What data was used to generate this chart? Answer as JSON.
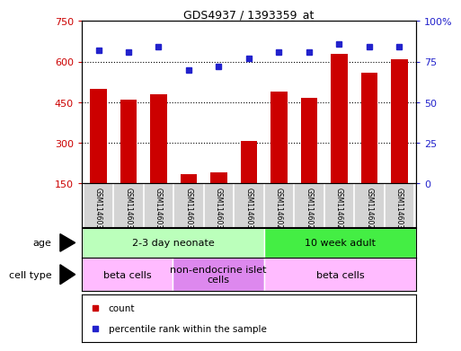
{
  "title": "GDS4937 / 1393359_at",
  "samples": [
    "GSM1146031",
    "GSM1146032",
    "GSM1146033",
    "GSM1146034",
    "GSM1146035",
    "GSM1146036",
    "GSM1146026",
    "GSM1146027",
    "GSM1146028",
    "GSM1146029",
    "GSM1146030"
  ],
  "counts": [
    500,
    460,
    480,
    185,
    190,
    305,
    490,
    465,
    630,
    560,
    610
  ],
  "percentiles": [
    82,
    81,
    84,
    70,
    72,
    77,
    81,
    81,
    86,
    84,
    84
  ],
  "ylim_left": [
    150,
    750
  ],
  "ylim_right": [
    0,
    100
  ],
  "yticks_left": [
    150,
    300,
    450,
    600,
    750
  ],
  "yticks_right": [
    0,
    25,
    50,
    75,
    100
  ],
  "ytick_labels_left": [
    "150",
    "300",
    "450",
    "600",
    "750"
  ],
  "ytick_labels_right": [
    "0",
    "25",
    "50",
    "75",
    "100%"
  ],
  "bar_color": "#cc0000",
  "dot_color": "#2222cc",
  "grid_color": "#000000",
  "age_groups": [
    {
      "label": "2-3 day neonate",
      "start": 0,
      "end": 6,
      "color": "#bbffbb"
    },
    {
      "label": "10 week adult",
      "start": 6,
      "end": 11,
      "color": "#44ee44"
    }
  ],
  "cell_type_groups": [
    {
      "label": "beta cells",
      "start": 0,
      "end": 3,
      "color": "#ffbbff"
    },
    {
      "label": "non-endocrine islet\ncells",
      "start": 3,
      "end": 6,
      "color": "#dd88ee"
    },
    {
      "label": "beta cells",
      "start": 6,
      "end": 11,
      "color": "#ffbbff"
    }
  ],
  "legend_items": [
    {
      "color": "#cc0000",
      "label": "count"
    },
    {
      "color": "#2222cc",
      "label": "percentile rank within the sample"
    }
  ],
  "background_color": "#ffffff",
  "tick_label_area_color": "#d4d4d4",
  "border_color": "#000000"
}
